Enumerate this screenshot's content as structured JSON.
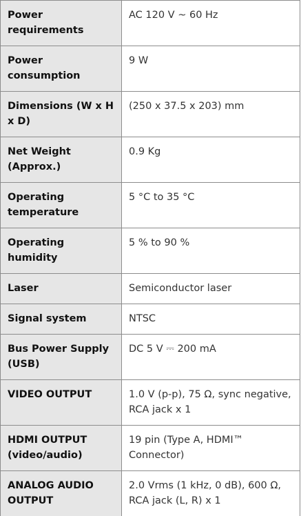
{
  "table": {
    "rows": [
      [
        "Power requirements",
        "AC 120 V ~ 60 Hz"
      ],
      [
        "Power consumption",
        "9 W"
      ],
      [
        "Dimensions (W x H x D)",
        "(250 x 37.5 x 203) mm"
      ],
      [
        "Net Weight (Approx.)",
        "0.9 Kg"
      ],
      [
        "Operating temperature",
        "5 °C to 35 °C"
      ],
      [
        "Operating humidity",
        "5 % to 90 %"
      ],
      [
        "Laser",
        "Semiconductor laser"
      ],
      [
        "Signal system",
        "NTSC"
      ],
      [
        "Bus Power Supply (USB)",
        "DC 5 V ⎓ 200 mA"
      ],
      [
        "VIDEO OUTPUT",
        "1.0 V (p-p), 75 Ω, sync negative, RCA jack x 1"
      ],
      [
        "HDMI OUTPUT (video/audio)",
        "19 pin (Type A, HDMI™ Connector)"
      ],
      [
        "ANALOG AUDIO OUTPUT",
        "2.0 Vrms (1 kHz, 0 dB), 600 Ω, RCA jack (L, R) x 1"
      ]
    ]
  }
}
